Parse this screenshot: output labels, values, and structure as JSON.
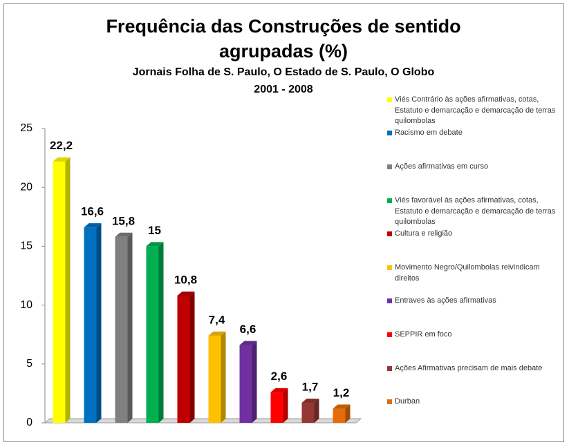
{
  "chart_data": {
    "type": "bar3d",
    "title": "Frequência das Construções de sentido agrupadas (%)",
    "subtitle": "Jornais Folha de S. Paulo, O Estado de S. Paulo, O Globo",
    "period": "2001 - 2008",
    "categories": [
      "Viés Contrário às ações afirmativas, cotas, Estatuto e demarcação e demarcação de terras quilombolas",
      "Racismo em debate",
      "Ações afirmativas em curso",
      "Viés favorável às ações afirmativas, cotas, Estatuto e demarcação e demarcação de terras quilombolas",
      "Cultura e religião",
      "Movimento Negro/Quilombolas reivindicam direitos",
      "Entraves às ações afirmativas",
      "SEPPIR em foco",
      "Ações Afirmativas precisam de mais debate",
      "Durban"
    ],
    "values": [
      22.2,
      16.6,
      15.8,
      15,
      10.8,
      7.4,
      6.6,
      2.6,
      1.7,
      1.2
    ],
    "value_labels": [
      "22,2",
      "16,6",
      "15,8",
      "15",
      "10,8",
      "7,4",
      "6,6",
      "2,6",
      "1,7",
      "1,2"
    ],
    "colors": [
      "#ffff00",
      "#0070c0",
      "#808080",
      "#00b050",
      "#c00000",
      "#ffc000",
      "#7030a0",
      "#ff0000",
      "#953735",
      "#e46c0a"
    ],
    "ylim": [
      0,
      25
    ],
    "yticks": [
      0,
      5,
      10,
      15,
      20,
      25
    ],
    "grid": false,
    "legend": "right"
  }
}
